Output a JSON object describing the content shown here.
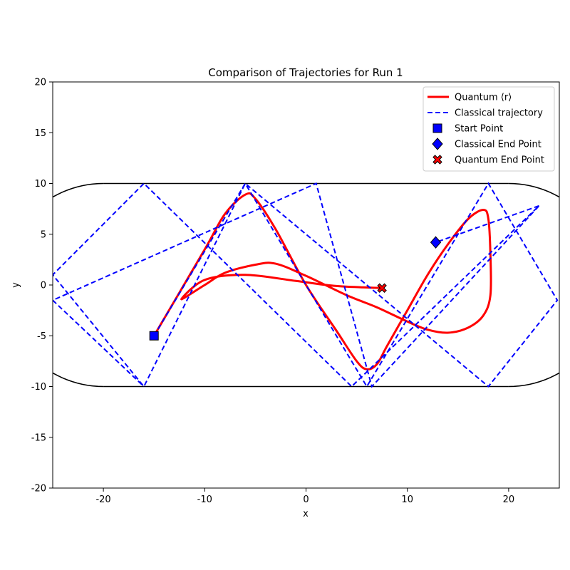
{
  "chart_data": {
    "type": "line",
    "title": "Comparison of Trajectories for Run 1",
    "xlabel": "x",
    "ylabel": "y",
    "xlim": [
      -25,
      25
    ],
    "ylim": [
      -20,
      20
    ],
    "xticks": [
      -20,
      -10,
      0,
      10,
      20
    ],
    "yticks": [
      -20,
      -15,
      -10,
      -5,
      0,
      5,
      10,
      15,
      20
    ],
    "grid": false,
    "legend_position": "top-right",
    "billiard_boundary": {
      "color": "#000000",
      "segments": [
        [
          [
            -20,
            10
          ],
          [
            20,
            10
          ]
        ],
        [
          [
            -20,
            -10
          ],
          [
            20,
            -10
          ]
        ]
      ],
      "arcs": [
        {
          "center": [
            -20,
            0
          ],
          "radius": 10,
          "side": "left"
        },
        {
          "center": [
            20,
            0
          ],
          "radius": 10,
          "side": "right"
        }
      ]
    },
    "series": [
      {
        "name": "Quantum ⟨r⟩",
        "style": "solid",
        "color": "#ff0000",
        "points": [
          [
            -15,
            -5
          ],
          [
            -10,
            3.5
          ],
          [
            -8,
            7
          ],
          [
            -6,
            8.9
          ],
          [
            -5,
            8.5
          ],
          [
            -3,
            5.5
          ],
          [
            0,
            0
          ],
          [
            3,
            -4.5
          ],
          [
            5,
            -7.5
          ],
          [
            6,
            -8.3
          ],
          [
            7,
            -7.8
          ],
          [
            8,
            -6
          ],
          [
            10,
            -2.5
          ],
          [
            12,
            1
          ],
          [
            14,
            4
          ],
          [
            16,
            6.5
          ],
          [
            17.5,
            7.4
          ],
          [
            18,
            6.5
          ],
          [
            18.2,
            3
          ],
          [
            18.2,
            -1
          ],
          [
            17.5,
            -3
          ],
          [
            16,
            -4.2
          ],
          [
            14,
            -4.7
          ],
          [
            12,
            -4.4
          ],
          [
            10,
            -3.6
          ],
          [
            7,
            -2.2
          ],
          [
            4,
            -1
          ],
          [
            0,
            0.9
          ],
          [
            -3,
            2.1
          ],
          [
            -5,
            2
          ],
          [
            -8,
            1.2
          ],
          [
            -10,
            0
          ],
          [
            -12.3,
            -1.4
          ],
          [
            -10,
            0.5
          ],
          [
            -6,
            1
          ],
          [
            -1,
            0.4
          ],
          [
            3,
            -0.1
          ],
          [
            7.5,
            -0.3
          ]
        ]
      },
      {
        "name": "Classical trajectory",
        "style": "dashed",
        "color": "#0000ff",
        "points": [
          [
            -15,
            -5
          ],
          [
            -6,
            10
          ],
          [
            6,
            -10
          ],
          [
            18,
            10
          ],
          [
            24.8,
            -1.5
          ],
          [
            18,
            -10
          ],
          [
            -6,
            10
          ],
          [
            -16,
            -10
          ],
          [
            -25,
            1
          ],
          [
            -16,
            10
          ],
          [
            4.5,
            -10
          ],
          [
            23,
            7.8
          ],
          [
            6.5,
            -10
          ],
          [
            1,
            10
          ],
          [
            -25,
            -1.5
          ],
          [
            -16,
            -10
          ]
        ]
      },
      {
        "name": "Classical trajectory (return)",
        "style": "dashed",
        "color": "#0000ff",
        "points": [
          [
            23,
            7.8
          ],
          [
            12.8,
            4.2
          ]
        ]
      }
    ],
    "markers": [
      {
        "name": "Start Point",
        "shape": "square",
        "color": "#0000ff",
        "x": -15,
        "y": -5
      },
      {
        "name": "Classical End Point",
        "shape": "diamond",
        "color": "#0000ff",
        "x": 12.8,
        "y": 4.2
      },
      {
        "name": "Quantum End Point",
        "shape": "x",
        "color": "#ff0000",
        "x": 7.5,
        "y": -0.3
      }
    ],
    "legend": [
      {
        "label": "Quantum ⟨r⟩",
        "kind": "line",
        "style": "solid",
        "color": "#ff0000"
      },
      {
        "label": "Classical trajectory",
        "kind": "line",
        "style": "dashed",
        "color": "#0000ff"
      },
      {
        "label": "Start Point",
        "kind": "marker",
        "shape": "square",
        "color": "#0000ff"
      },
      {
        "label": "Classical End Point",
        "kind": "marker",
        "shape": "diamond",
        "color": "#0000ff"
      },
      {
        "label": "Quantum End Point",
        "kind": "marker",
        "shape": "x",
        "color": "#ff0000"
      }
    ]
  }
}
